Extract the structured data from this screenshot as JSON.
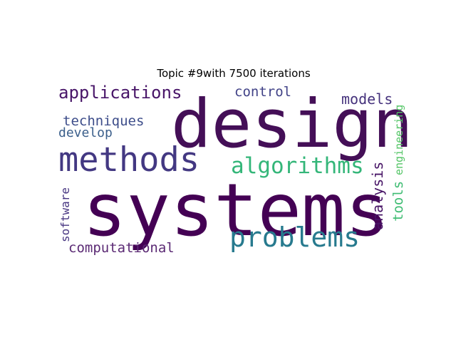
{
  "figure": {
    "title": "Topic #9with 7500 iterations"
  },
  "cloud": {
    "words": [
      {
        "text": "design",
        "color": "#440f57",
        "orientation": "horizontal"
      },
      {
        "text": "systems",
        "color": "#440154",
        "orientation": "horizontal"
      },
      {
        "text": "methods",
        "color": "#433882",
        "orientation": "horizontal"
      },
      {
        "text": "problems",
        "color": "#277a8e",
        "orientation": "horizontal"
      },
      {
        "text": "algorithms",
        "color": "#34b679",
        "orientation": "horizontal"
      },
      {
        "text": "applications",
        "color": "#481568",
        "orientation": "horizontal"
      },
      {
        "text": "control",
        "color": "#414287",
        "orientation": "horizontal"
      },
      {
        "text": "models",
        "color": "#45327c",
        "orientation": "horizontal"
      },
      {
        "text": "techniques",
        "color": "#3d4d8a",
        "orientation": "horizontal"
      },
      {
        "text": "develop",
        "color": "#3b5f8b",
        "orientation": "horizontal"
      },
      {
        "text": "computational",
        "color": "#5b2a74",
        "orientation": "horizontal"
      },
      {
        "text": "software",
        "color": "#463480",
        "orientation": "vertical"
      },
      {
        "text": "analysis",
        "color": "#471466",
        "orientation": "vertical"
      },
      {
        "text": "tools",
        "color": "#3fbc73",
        "orientation": "vertical"
      },
      {
        "text": "engineering",
        "color": "#55c567",
        "orientation": "vertical"
      }
    ]
  }
}
